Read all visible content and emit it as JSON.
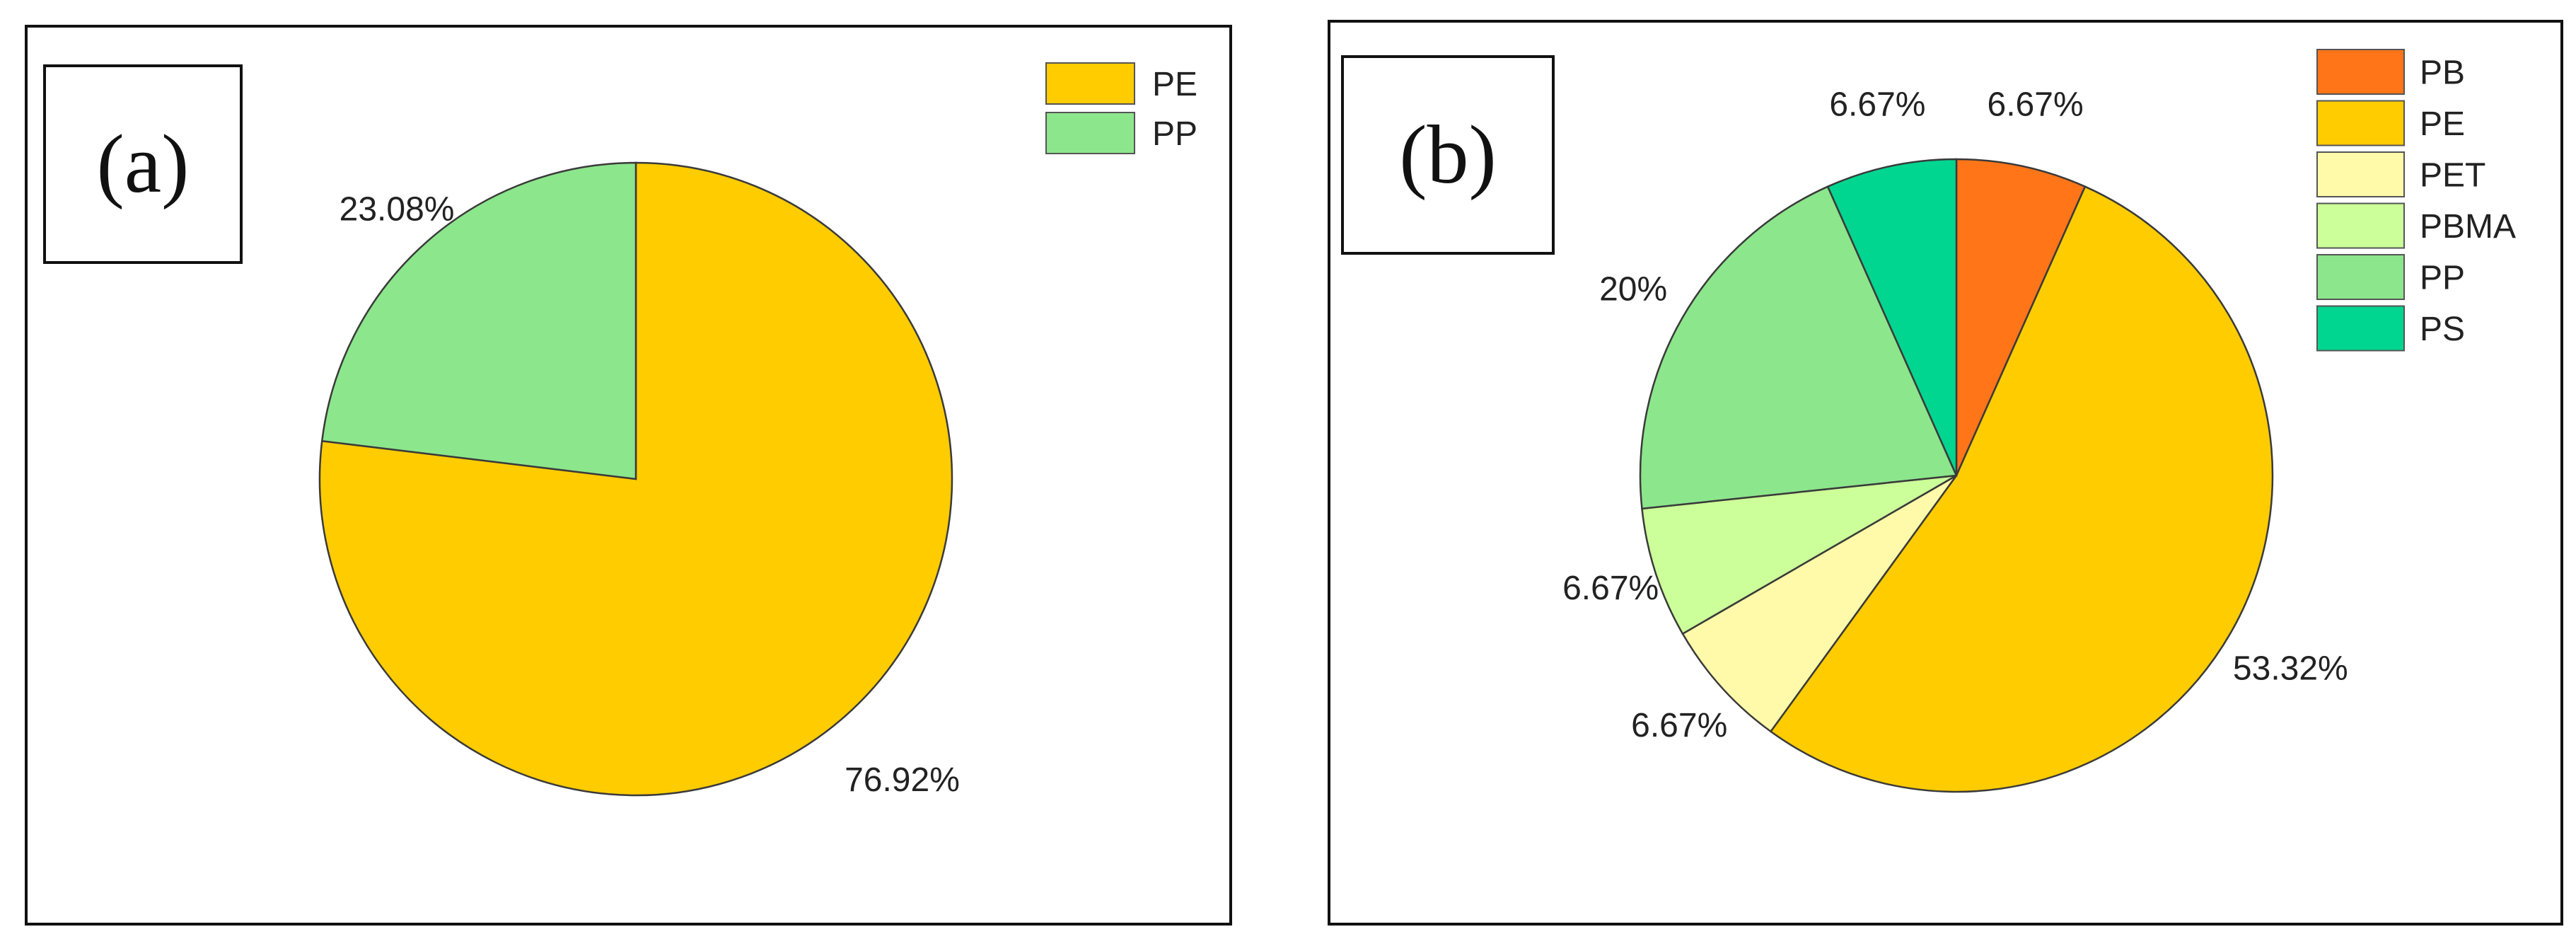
{
  "chart_data": [
    {
      "type": "pie",
      "panel_label": "(a)",
      "slices": [
        {
          "name": "PE",
          "value": 76.92,
          "label": "76.92%",
          "color": "#FFCC00"
        },
        {
          "name": "PP",
          "value": 23.08,
          "label": "23.08%",
          "color": "#8CE68C"
        }
      ],
      "legend": [
        "PE",
        "PP"
      ],
      "legend_position": "top-right"
    },
    {
      "type": "pie",
      "panel_label": "(b)",
      "slices": [
        {
          "name": "PB",
          "value": 6.67,
          "label": "6.67%",
          "color": "#FF7518"
        },
        {
          "name": "PE",
          "value": 53.32,
          "label": "53.32%",
          "color": "#FFCC00"
        },
        {
          "name": "PET",
          "value": 6.67,
          "label": "6.67%",
          "color": "#FFFAAA"
        },
        {
          "name": "PBMA",
          "value": 6.67,
          "label": "6.67%",
          "color": "#CCFF99"
        },
        {
          "name": "PP",
          "value": 20,
          "label": "20%",
          "color": "#8CE68C"
        },
        {
          "name": "PS",
          "value": 6.67,
          "label": "6.67%",
          "color": "#00D68F"
        }
      ],
      "legend": [
        "PB",
        "PE",
        "PET",
        "PBMA",
        "PP",
        "PS"
      ],
      "legend_position": "top-right"
    }
  ]
}
